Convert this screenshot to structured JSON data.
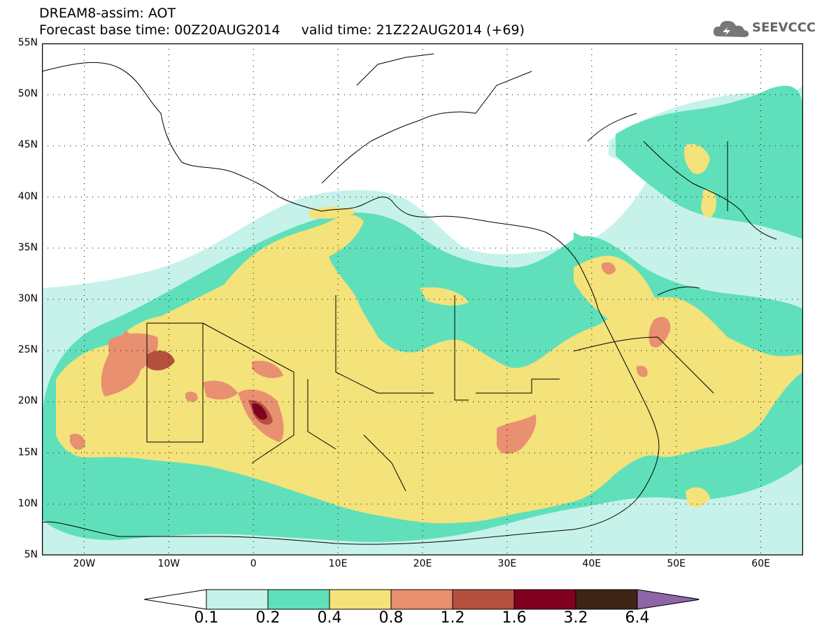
{
  "title_line1": "DREAM8-assim: AOT",
  "title_line2": "Forecast base time: 00Z20AUG2014     valid time: 21Z22AUG2014 (+69)",
  "logo_text": "SEEVCCC",
  "map": {
    "lon_min": -25,
    "lon_max": 65,
    "lat_min": 5,
    "lat_max": 55,
    "lat_ticks": [
      {
        "lat": 55,
        "label": "55N"
      },
      {
        "lat": 50,
        "label": "50N"
      },
      {
        "lat": 45,
        "label": "45N"
      },
      {
        "lat": 40,
        "label": "40N"
      },
      {
        "lat": 35,
        "label": "35N"
      },
      {
        "lat": 30,
        "label": "30N"
      },
      {
        "lat": 25,
        "label": "25N"
      },
      {
        "lat": 20,
        "label": "20N"
      },
      {
        "lat": 15,
        "label": "15N"
      },
      {
        "lat": 10,
        "label": "10N"
      },
      {
        "lat": 5,
        "label": "5N"
      }
    ],
    "lon_ticks": [
      {
        "lon": -20,
        "label": "20W"
      },
      {
        "lon": -10,
        "label": "10W"
      },
      {
        "lon": 0,
        "label": "0"
      },
      {
        "lon": 10,
        "label": "10E"
      },
      {
        "lon": 20,
        "label": "20E"
      },
      {
        "lon": 30,
        "label": "30E"
      },
      {
        "lon": 40,
        "label": "40E"
      },
      {
        "lon": 50,
        "label": "50E"
      },
      {
        "lon": 60,
        "label": "60E"
      }
    ]
  },
  "colors": {
    "c01": "#c6f2ea",
    "c02": "#5fe0bb",
    "c04": "#f4e27a",
    "c08": "#e89070",
    "c12": "#b5503e",
    "c16": "#800020",
    "c32": "#3d2414",
    "c64": "#8e66a8",
    "land": "#ffffff",
    "border": "#000000"
  },
  "legend": {
    "colors": [
      "#ffffff",
      "#c6f2ea",
      "#5fe0bb",
      "#f4e27a",
      "#e89070",
      "#b5503e",
      "#800020",
      "#3d2414",
      "#8e66a8"
    ],
    "labels": [
      "0.1",
      "0.2",
      "0.4",
      "0.8",
      "1.2",
      "1.6",
      "3.2",
      "6.4"
    ]
  }
}
